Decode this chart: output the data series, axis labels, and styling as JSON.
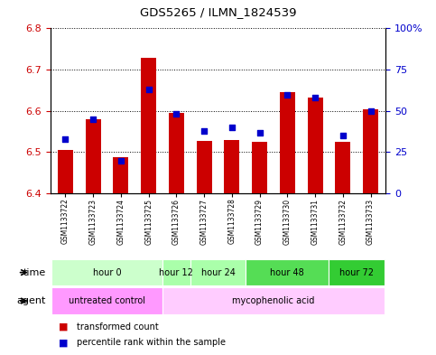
{
  "title": "GDS5265 / ILMN_1824539",
  "samples": [
    "GSM1133722",
    "GSM1133723",
    "GSM1133724",
    "GSM1133725",
    "GSM1133726",
    "GSM1133727",
    "GSM1133728",
    "GSM1133729",
    "GSM1133730",
    "GSM1133731",
    "GSM1133732",
    "GSM1133733"
  ],
  "transformed_count": [
    6.505,
    6.58,
    6.487,
    6.728,
    6.595,
    6.528,
    6.53,
    6.525,
    6.645,
    6.632,
    6.525,
    6.604
  ],
  "percentile_rank": [
    33,
    45,
    20,
    63,
    48,
    38,
    40,
    37,
    60,
    58,
    35,
    50
  ],
  "ylim_left": [
    6.4,
    6.8
  ],
  "ylim_right": [
    0,
    100
  ],
  "yticks_left": [
    6.4,
    6.5,
    6.6,
    6.7,
    6.8
  ],
  "yticks_right": [
    0,
    25,
    50,
    75,
    100
  ],
  "ytick_labels_right": [
    "0",
    "25",
    "50",
    "75",
    "100%"
  ],
  "bar_color": "#cc0000",
  "dot_color": "#0000cc",
  "bar_bottom": 6.4,
  "time_groups": [
    {
      "label": "hour 0",
      "start": 0,
      "end": 3,
      "color": "#ccffcc"
    },
    {
      "label": "hour 12",
      "start": 4,
      "end": 4,
      "color": "#aaffaa"
    },
    {
      "label": "hour 24",
      "start": 5,
      "end": 6,
      "color": "#aaffaa"
    },
    {
      "label": "hour 48",
      "start": 7,
      "end": 9,
      "color": "#55dd55"
    },
    {
      "label": "hour 72",
      "start": 10,
      "end": 11,
      "color": "#33cc33"
    }
  ],
  "agent_groups": [
    {
      "label": "untreated control",
      "start": 0,
      "end": 3,
      "color": "#ff99ff"
    },
    {
      "label": "mycophenolic acid",
      "start": 4,
      "end": 11,
      "color": "#ffccff"
    }
  ],
  "background_color": "#ffffff",
  "plot_bg": "#ffffff",
  "sample_bg": "#c8c8c8",
  "ylabel_left_color": "#cc0000",
  "ylabel_right_color": "#0000cc"
}
